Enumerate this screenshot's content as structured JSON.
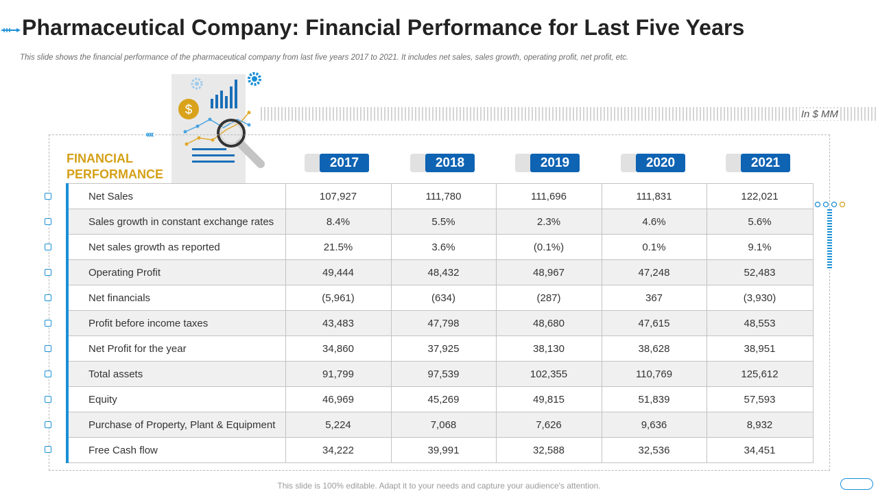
{
  "slide": {
    "title": "Pharmaceutical Company: Financial Performance for Last Five Years",
    "subtitle": "This slide shows the financial performance of the pharmaceutical company from last five years 2017 to 2021. It includes net sales, sales growth, operating profit, net profit, etc.",
    "units": "In $ MM",
    "footer": "This slide is 100% editable. Adapt it to your needs and capture your audience's attention."
  },
  "illustration": {
    "currency_symbol": "$"
  },
  "table": {
    "section_label_line1": "FINANCIAL",
    "section_label_line2": "PERFORMANCE",
    "years": [
      "2017",
      "2018",
      "2019",
      "2020",
      "2021"
    ],
    "rows": [
      {
        "label": "Net Sales",
        "values": [
          "107,927",
          "111,780",
          "111,696",
          "111,831",
          "122,021"
        ]
      },
      {
        "label": "Sales growth in constant exchange rates",
        "values": [
          "8.4%",
          "5.5%",
          "2.3%",
          "4.6%",
          "5.6%"
        ]
      },
      {
        "label": "Net sales growth as reported",
        "values": [
          "21.5%",
          "3.6%",
          "(0.1%)",
          "0.1%",
          "9.1%"
        ]
      },
      {
        "label": "Operating Profit",
        "values": [
          "49,444",
          "48,432",
          "48,967",
          "47,248",
          "52,483"
        ]
      },
      {
        "label": "Net financials",
        "values": [
          "(5,961)",
          "(634)",
          "(287)",
          "367",
          "(3,930)"
        ]
      },
      {
        "label": "Profit before income taxes",
        "values": [
          "43,483",
          "47,798",
          "48,680",
          "47,615",
          "48,553"
        ]
      },
      {
        "label": "Net Profit for the year",
        "values": [
          "34,860",
          "37,925",
          "38,130",
          "38,628",
          "38,951"
        ]
      },
      {
        "label": "Total assets",
        "values": [
          "91,799",
          "97,539",
          "102,355",
          "110,769",
          "125,612"
        ]
      },
      {
        "label": "Equity",
        "values": [
          "46,969",
          "45,269",
          "49,815",
          "51,839",
          "57,593"
        ]
      },
      {
        "label": "Purchase of Property, Plant & Equipment",
        "values": [
          "5,224",
          "7,068",
          "7,626",
          "9,636",
          "8,932"
        ]
      },
      {
        "label": "Free Cash flow",
        "values": [
          "34,222",
          "39,991",
          "32,588",
          "32,536",
          "34,451"
        ]
      }
    ]
  },
  "colors": {
    "accent_blue": "#1a8fd6",
    "year_pill_blue": "#0e63b3",
    "label_gold": "#d4a017"
  }
}
